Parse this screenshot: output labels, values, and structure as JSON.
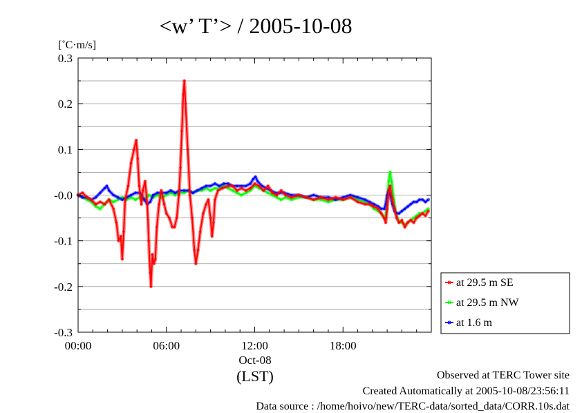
{
  "chart_data": {
    "type": "line",
    "title": "<w’ T’> / 2005-10-08",
    "ylabel": "[˚C·m/s]",
    "xlabel": "(LST)",
    "x_date_label": "Oct-08",
    "xlim": [
      0,
      24
    ],
    "ylim": [
      -0.3,
      0.3
    ],
    "x_ticks": [
      {
        "value": 0,
        "label": "00:00"
      },
      {
        "value": 6,
        "label": "06:00"
      },
      {
        "value": 12,
        "label": "12:00"
      },
      {
        "value": 18,
        "label": "18:00"
      }
    ],
    "y_ticks": [
      {
        "value": 0.3,
        "label": "0.3"
      },
      {
        "value": 0.2,
        "label": "0.2"
      },
      {
        "value": 0.1,
        "label": "0.1"
      },
      {
        "value": 0.0,
        "label": "-0.0"
      },
      {
        "value": -0.1,
        "label": "-0.1"
      },
      {
        "value": -0.2,
        "label": "-0.2"
      },
      {
        "value": -0.3,
        "label": "-0.3"
      }
    ],
    "grid": true,
    "legend_position": "right",
    "series": [
      {
        "name": "at 29.5 m SE",
        "color": "#ff0000",
        "points": [
          [
            0,
            0
          ],
          [
            0.3,
            0.005
          ],
          [
            0.6,
            -0.005
          ],
          [
            0.9,
            -0.01
          ],
          [
            1.2,
            -0.02
          ],
          [
            1.5,
            -0.015
          ],
          [
            1.8,
            -0.02
          ],
          [
            2.1,
            -0.01
          ],
          [
            2.4,
            -0.03
          ],
          [
            2.6,
            -0.06
          ],
          [
            2.75,
            -0.1
          ],
          [
            2.9,
            -0.09
          ],
          [
            3.0,
            -0.14
          ],
          [
            3.1,
            -0.08
          ],
          [
            3.2,
            -0.01
          ],
          [
            3.4,
            0.02
          ],
          [
            3.6,
            0.07
          ],
          [
            3.8,
            0.1
          ],
          [
            3.95,
            0.12
          ],
          [
            4.05,
            0.08
          ],
          [
            4.15,
            0.02
          ],
          [
            4.3,
            -0.02
          ],
          [
            4.4,
            0.01
          ],
          [
            4.55,
            0.03
          ],
          [
            4.7,
            -0.02
          ],
          [
            4.8,
            -0.1
          ],
          [
            4.9,
            -0.17
          ],
          [
            4.95,
            -0.2
          ],
          [
            5.05,
            -0.13
          ],
          [
            5.15,
            -0.15
          ],
          [
            5.25,
            -0.14
          ],
          [
            5.35,
            -0.07
          ],
          [
            5.5,
            -0.02
          ],
          [
            5.65,
            0.01
          ],
          [
            5.85,
            -0.02
          ],
          [
            6.0,
            -0.04
          ],
          [
            6.2,
            -0.05
          ],
          [
            6.4,
            -0.07
          ],
          [
            6.55,
            -0.07
          ],
          [
            6.7,
            -0.05
          ],
          [
            6.85,
            0.0
          ],
          [
            6.95,
            0.06
          ],
          [
            7.05,
            0.14
          ],
          [
            7.15,
            0.22
          ],
          [
            7.22,
            0.25
          ],
          [
            7.3,
            0.2
          ],
          [
            7.45,
            0.1
          ],
          [
            7.6,
            0.0
          ],
          [
            7.75,
            -0.05
          ],
          [
            7.9,
            -0.12
          ],
          [
            8.0,
            -0.15
          ],
          [
            8.15,
            -0.12
          ],
          [
            8.3,
            -0.08
          ],
          [
            8.5,
            -0.04
          ],
          [
            8.7,
            -0.02
          ],
          [
            8.85,
            -0.01
          ],
          [
            9.0,
            -0.05
          ],
          [
            9.1,
            -0.09
          ],
          [
            9.2,
            -0.06
          ],
          [
            9.3,
            -0.01
          ],
          [
            9.5,
            0.01
          ],
          [
            9.8,
            0.015
          ],
          [
            10.2,
            0.02
          ],
          [
            10.5,
            0.02
          ],
          [
            10.8,
            0.01
          ],
          [
            11.1,
            0.015
          ],
          [
            11.4,
            0.01
          ],
          [
            11.7,
            0.015
          ],
          [
            12.0,
            0.025
          ],
          [
            12.3,
            0.02
          ],
          [
            12.6,
            0.01
          ],
          [
            12.9,
            0.02
          ],
          [
            13.2,
            0.005
          ],
          [
            13.5,
            0.0
          ],
          [
            13.8,
            0.01
          ],
          [
            14.1,
            0.0
          ],
          [
            14.5,
            -0.005
          ],
          [
            15.0,
            0.0
          ],
          [
            15.5,
            -0.005
          ],
          [
            16.0,
            -0.01
          ],
          [
            16.5,
            -0.005
          ],
          [
            17.0,
            -0.01
          ],
          [
            17.5,
            -0.005
          ],
          [
            18.0,
            -0.01
          ],
          [
            18.5,
            -0.005
          ],
          [
            19.0,
            -0.015
          ],
          [
            19.5,
            -0.02
          ],
          [
            19.8,
            -0.02
          ],
          [
            20.1,
            -0.025
          ],
          [
            20.4,
            -0.03
          ],
          [
            20.6,
            -0.04
          ],
          [
            20.8,
            -0.05
          ],
          [
            20.9,
            -0.06
          ],
          [
            21.0,
            -0.03
          ],
          [
            21.1,
            0.01
          ],
          [
            21.2,
            0.02
          ],
          [
            21.35,
            -0.01
          ],
          [
            21.5,
            -0.03
          ],
          [
            21.65,
            -0.05
          ],
          [
            21.8,
            -0.06
          ],
          [
            22.0,
            -0.055
          ],
          [
            22.2,
            -0.07
          ],
          [
            22.4,
            -0.06
          ],
          [
            22.6,
            -0.055
          ],
          [
            22.8,
            -0.06
          ],
          [
            23.0,
            -0.05
          ],
          [
            23.2,
            -0.045
          ],
          [
            23.4,
            -0.04
          ],
          [
            23.6,
            -0.045
          ],
          [
            23.8,
            -0.035
          ]
        ]
      },
      {
        "name": "at 29.5 m NW",
        "color": "#00ff00",
        "points": [
          [
            0,
            0
          ],
          [
            0.3,
            -0.005
          ],
          [
            0.6,
            -0.01
          ],
          [
            0.9,
            -0.015
          ],
          [
            1.2,
            -0.025
          ],
          [
            1.5,
            -0.03
          ],
          [
            1.8,
            -0.02
          ],
          [
            2.1,
            -0.01
          ],
          [
            2.4,
            -0.015
          ],
          [
            2.7,
            -0.01
          ],
          [
            3.0,
            -0.005
          ],
          [
            3.3,
            -0.01
          ],
          [
            3.6,
            -0.005
          ],
          [
            3.9,
            -0.01
          ],
          [
            4.2,
            -0.005
          ],
          [
            4.5,
            -0.01
          ],
          [
            4.8,
            0.0
          ],
          [
            5.1,
            -0.005
          ],
          [
            5.4,
            0.0
          ],
          [
            5.7,
            -0.005
          ],
          [
            6.0,
            0.0
          ],
          [
            6.3,
            0.005
          ],
          [
            6.6,
            0.0
          ],
          [
            6.9,
            0.005
          ],
          [
            7.2,
            0.005
          ],
          [
            7.5,
            0.01
          ],
          [
            7.8,
            0.005
          ],
          [
            8.1,
            0.01
          ],
          [
            8.4,
            0.01
          ],
          [
            8.7,
            0.015
          ],
          [
            9.0,
            0.01
          ],
          [
            9.3,
            0.015
          ],
          [
            9.6,
            0.015
          ],
          [
            9.9,
            0.02
          ],
          [
            10.2,
            0.015
          ],
          [
            10.5,
            0.01
          ],
          [
            10.8,
            0.005
          ],
          [
            11.1,
            0.0
          ],
          [
            11.4,
            0.005
          ],
          [
            11.7,
            0.01
          ],
          [
            12.0,
            0.02
          ],
          [
            12.3,
            0.015
          ],
          [
            12.6,
            0.01
          ],
          [
            12.9,
            0.005
          ],
          [
            13.2,
            0.0
          ],
          [
            13.5,
            -0.005
          ],
          [
            13.8,
            -0.01
          ],
          [
            14.1,
            -0.005
          ],
          [
            14.5,
            -0.01
          ],
          [
            15.0,
            -0.005
          ],
          [
            15.5,
            -0.005
          ],
          [
            16.0,
            -0.01
          ],
          [
            16.5,
            -0.01
          ],
          [
            17.0,
            -0.015
          ],
          [
            17.5,
            -0.01
          ],
          [
            18.0,
            -0.01
          ],
          [
            18.5,
            -0.005
          ],
          [
            19.0,
            -0.01
          ],
          [
            19.5,
            -0.015
          ],
          [
            19.8,
            -0.02
          ],
          [
            20.1,
            -0.03
          ],
          [
            20.4,
            -0.035
          ],
          [
            20.6,
            -0.04
          ],
          [
            20.8,
            -0.05
          ],
          [
            20.9,
            -0.05
          ],
          [
            21.0,
            -0.01
          ],
          [
            21.1,
            0.03
          ],
          [
            21.2,
            0.05
          ],
          [
            21.3,
            0.03
          ],
          [
            21.45,
            -0.01
          ],
          [
            21.6,
            -0.04
          ],
          [
            21.8,
            -0.06
          ],
          [
            22.0,
            -0.06
          ],
          [
            22.2,
            -0.065
          ],
          [
            22.4,
            -0.06
          ],
          [
            22.6,
            -0.055
          ],
          [
            22.8,
            -0.05
          ],
          [
            23.0,
            -0.045
          ],
          [
            23.2,
            -0.04
          ],
          [
            23.4,
            -0.04
          ],
          [
            23.6,
            -0.035
          ],
          [
            23.8,
            -0.03
          ]
        ]
      },
      {
        "name": "at 1.6 m",
        "color": "#0000ff",
        "points": [
          [
            0,
            0
          ],
          [
            0.3,
            -0.005
          ],
          [
            0.6,
            -0.005
          ],
          [
            0.9,
            -0.01
          ],
          [
            1.2,
            -0.005
          ],
          [
            1.5,
            0.005
          ],
          [
            1.8,
            0.015
          ],
          [
            1.95,
            0.02
          ],
          [
            2.1,
            0.01
          ],
          [
            2.4,
            0.0
          ],
          [
            2.7,
            -0.005
          ],
          [
            3.0,
            -0.01
          ],
          [
            3.3,
            -0.005
          ],
          [
            3.6,
            0.0
          ],
          [
            3.9,
            0.005
          ],
          [
            4.2,
            0.005
          ],
          [
            4.5,
            -0.01
          ],
          [
            4.7,
            -0.02
          ],
          [
            4.9,
            -0.015
          ],
          [
            5.1,
            0.0
          ],
          [
            5.4,
            0.005
          ],
          [
            5.7,
            0.005
          ],
          [
            6.0,
            0.005
          ],
          [
            6.3,
            0.01
          ],
          [
            6.6,
            0.005
          ],
          [
            6.9,
            0.01
          ],
          [
            7.2,
            0.01
          ],
          [
            7.5,
            0.01
          ],
          [
            7.8,
            0.005
          ],
          [
            8.1,
            0.01
          ],
          [
            8.4,
            0.015
          ],
          [
            8.7,
            0.02
          ],
          [
            9.0,
            0.02
          ],
          [
            9.3,
            0.025
          ],
          [
            9.6,
            0.02
          ],
          [
            9.9,
            0.025
          ],
          [
            10.2,
            0.025
          ],
          [
            10.5,
            0.02
          ],
          [
            10.8,
            0.02
          ],
          [
            11.1,
            0.02
          ],
          [
            11.4,
            0.02
          ],
          [
            11.7,
            0.025
          ],
          [
            11.9,
            0.035
          ],
          [
            12.05,
            0.04
          ],
          [
            12.2,
            0.03
          ],
          [
            12.5,
            0.02
          ],
          [
            12.8,
            0.015
          ],
          [
            13.1,
            0.01
          ],
          [
            13.4,
            0.005
          ],
          [
            13.7,
            0.005
          ],
          [
            14.0,
            0.005
          ],
          [
            14.5,
            0.0
          ],
          [
            15.0,
            0.0
          ],
          [
            15.5,
            -0.005
          ],
          [
            16.0,
            0.0
          ],
          [
            16.5,
            -0.005
          ],
          [
            17.0,
            -0.005
          ],
          [
            17.5,
            -0.01
          ],
          [
            18.0,
            -0.005
          ],
          [
            18.5,
            0.0
          ],
          [
            19.0,
            -0.005
          ],
          [
            19.5,
            -0.01
          ],
          [
            19.8,
            -0.015
          ],
          [
            20.1,
            -0.02
          ],
          [
            20.4,
            -0.025
          ],
          [
            20.6,
            -0.03
          ],
          [
            20.8,
            -0.03
          ],
          [
            20.9,
            -0.02
          ],
          [
            21.0,
            0.0
          ],
          [
            21.1,
            0.01
          ],
          [
            21.2,
            0.0
          ],
          [
            21.35,
            -0.02
          ],
          [
            21.5,
            -0.035
          ],
          [
            21.65,
            -0.04
          ],
          [
            21.8,
            -0.04
          ],
          [
            22.0,
            -0.035
          ],
          [
            22.2,
            -0.03
          ],
          [
            22.4,
            -0.025
          ],
          [
            22.6,
            -0.02
          ],
          [
            22.8,
            -0.015
          ],
          [
            23.0,
            -0.015
          ],
          [
            23.2,
            -0.01
          ],
          [
            23.4,
            -0.01
          ],
          [
            23.6,
            -0.015
          ],
          [
            23.8,
            -0.01
          ]
        ]
      }
    ]
  },
  "footer": {
    "line1": "Observed at TERC Tower site",
    "line2": "Created Automatically at 2005-10-08/23:56:11",
    "line3": "Data source : /home/hoivo/new/TERC-data/sorted_data/CORR.10s.dat"
  }
}
